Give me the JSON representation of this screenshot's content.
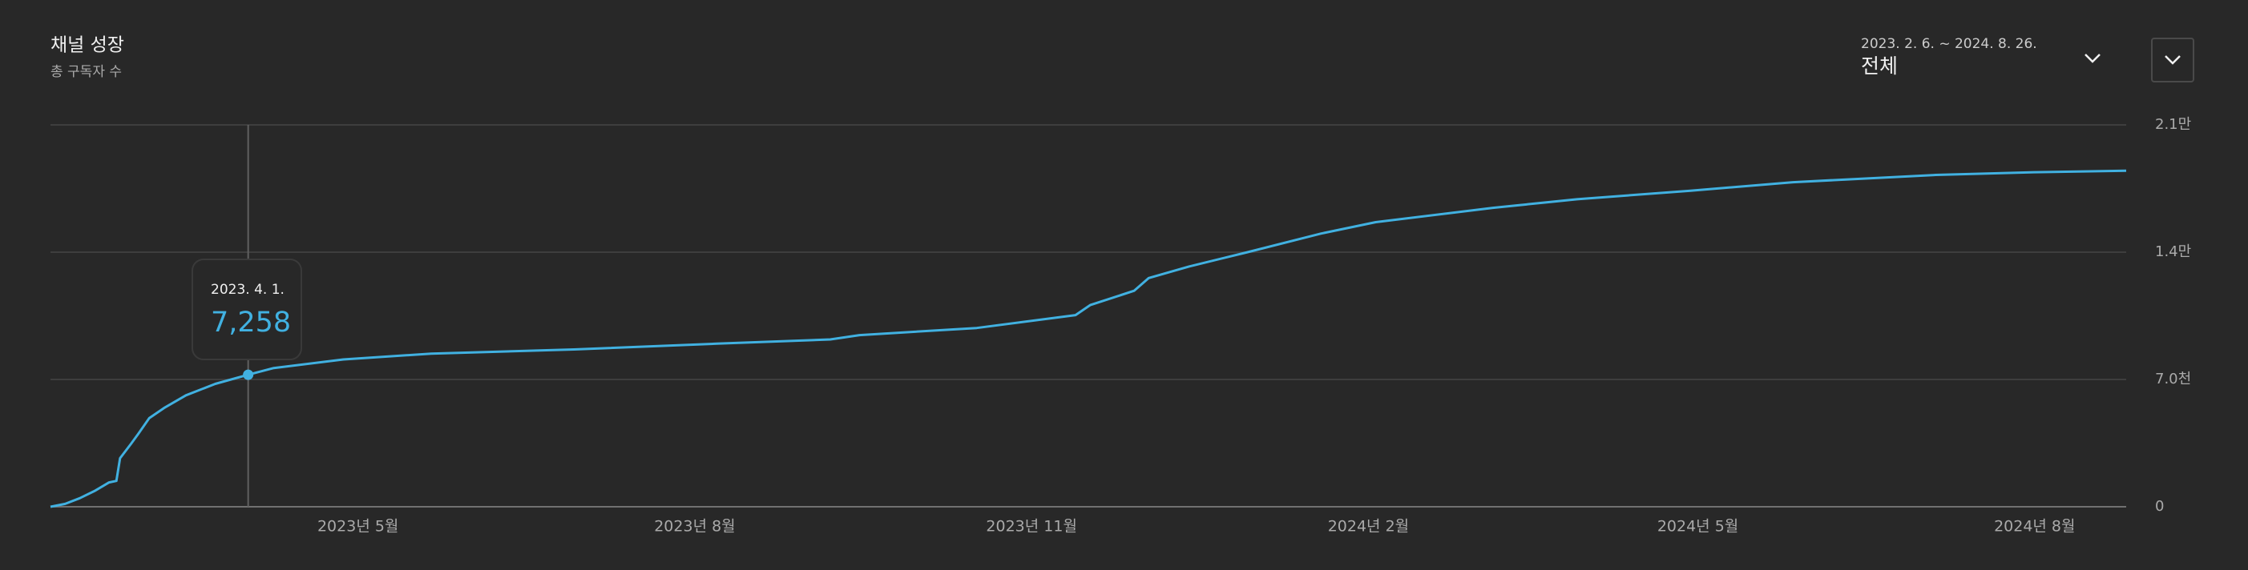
{
  "controls": {
    "date_range": "2023. 2. 6. ~ 2024. 8. 26.",
    "period": "전체"
  },
  "chart_data": {
    "type": "line",
    "title": "채널 성장",
    "subtitle": "총 구독자 수",
    "x": [
      "2023-02-06",
      "2023-02-10",
      "2023-02-14",
      "2023-02-18",
      "2023-02-22",
      "2023-02-24",
      "2023-02-25",
      "2023-02-28",
      "2023-03-02",
      "2023-03-05",
      "2023-03-09",
      "2023-03-15",
      "2023-03-23",
      "2023-04-01",
      "2023-04-08",
      "2023-04-27",
      "2023-05-21",
      "2023-06-29",
      "2023-08-07",
      "2023-09-07",
      "2023-09-15",
      "2023-10-17",
      "2023-11-13",
      "2023-11-17",
      "2023-11-29",
      "2023-12-03",
      "2023-12-14",
      "2023-12-30",
      "2024-01-19",
      "2024-02-03",
      "2024-03-06",
      "2024-03-29",
      "2024-04-29",
      "2024-05-27",
      "2024-07-05",
      "2024-08-01",
      "2024-08-26"
    ],
    "series": [
      {
        "name": "총 구독자 수",
        "color": "#41b1e1",
        "values": [
          0,
          160,
          470,
          865,
          1340,
          1420,
          2670,
          3460,
          4010,
          4880,
          5430,
          6130,
          6760,
          7258,
          7630,
          8100,
          8420,
          8650,
          8970,
          9200,
          9440,
          9830,
          10540,
          11090,
          11880,
          12580,
          13210,
          14000,
          15020,
          15650,
          16440,
          16910,
          17380,
          17850,
          18250,
          18400,
          18480
        ]
      }
    ],
    "xlim": [
      "2023-02-06",
      "2024-08-26"
    ],
    "xticks": [
      {
        "value": "2023-05-01",
        "label": "2023년 5월"
      },
      {
        "value": "2023-08-01",
        "label": "2023년 8월"
      },
      {
        "value": "2023-11-01",
        "label": "2023년 11월"
      },
      {
        "value": "2024-02-01",
        "label": "2024년 2월"
      },
      {
        "value": "2024-05-01",
        "label": "2024년 5월"
      },
      {
        "value": "2024-08-01",
        "label": "2024년 8월"
      }
    ],
    "ylim": [
      0,
      21000
    ],
    "yticks": [
      0,
      {
        "value": 7000,
        "label": "7.0천"
      },
      {
        "value": 14000,
        "label": "1.4만"
      },
      {
        "value": 21000,
        "label": "2.1만"
      }
    ],
    "grid": true,
    "tooltip": {
      "x": "2023-04-01",
      "label": "2023. 4. 1.",
      "value": 7258,
      "value_label": "7,258"
    }
  }
}
